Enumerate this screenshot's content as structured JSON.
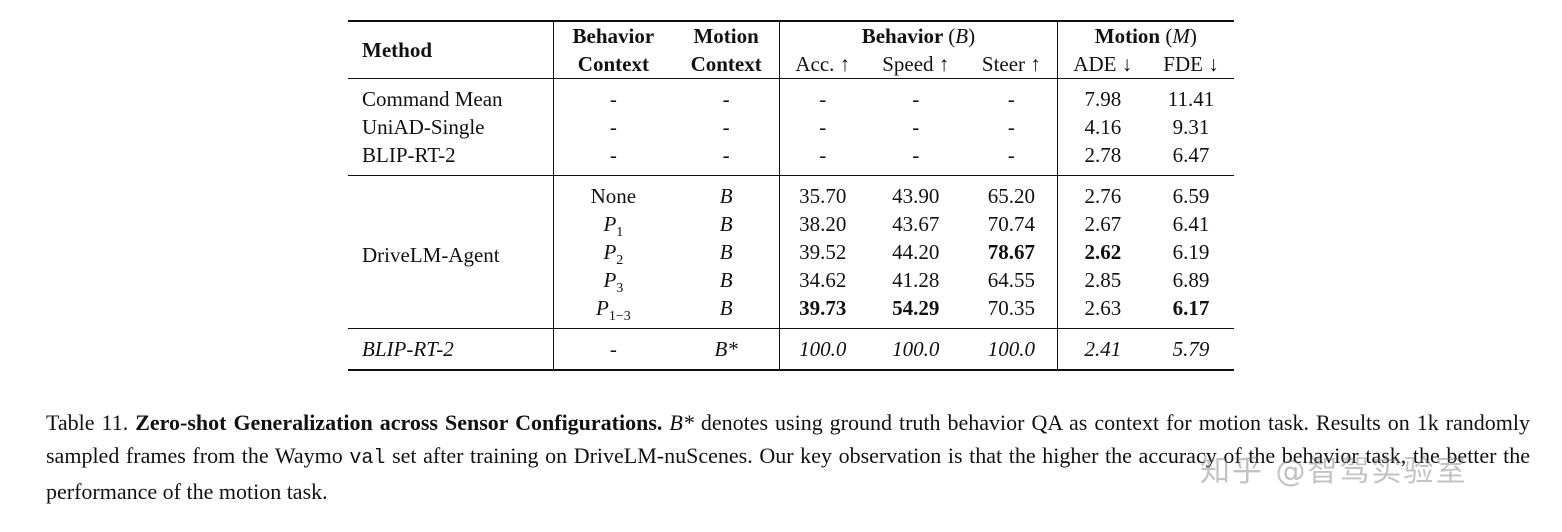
{
  "table": {
    "headers": {
      "method": "Method",
      "behavior_context_1": "Behavior",
      "behavior_context_2": "Context",
      "motion_context_1": "Motion",
      "motion_context_2": "Context",
      "behavior_group": "Behavior",
      "behavior_symbol": "(B)",
      "motion_group": "Motion",
      "motion_symbol": "(M)",
      "acc": "Acc. ↑",
      "speed": "Speed ↑",
      "steer": "Steer ↑",
      "ade": "ADE ↓",
      "fde": "FDE ↓"
    },
    "baselines": [
      {
        "method": "Command Mean",
        "bctx": "-",
        "mctx": "-",
        "acc": "-",
        "speed": "-",
        "steer": "-",
        "ade": "7.98",
        "fde": "11.41"
      },
      {
        "method": "UniAD-Single",
        "bctx": "-",
        "mctx": "-",
        "acc": "-",
        "speed": "-",
        "steer": "-",
        "ade": "4.16",
        "fde": "9.31"
      },
      {
        "method": "BLIP-RT-2",
        "bctx": "-",
        "mctx": "-",
        "acc": "-",
        "speed": "-",
        "steer": "-",
        "ade": "2.78",
        "fde": "6.47"
      }
    ],
    "agent_method": "DriveLM-Agent",
    "agent_rows": [
      {
        "bctx": "None",
        "mctx": "B",
        "acc": "35.70",
        "speed": "43.90",
        "steer": "65.20",
        "ade": "2.76",
        "fde": "6.59"
      },
      {
        "bctx": "P",
        "bsub": "1",
        "mctx": "B",
        "acc": "38.20",
        "speed": "43.67",
        "steer": "70.74",
        "ade": "2.67",
        "fde": "6.41"
      },
      {
        "bctx": "P",
        "bsub": "2",
        "mctx": "B",
        "acc": "39.52",
        "speed": "44.20",
        "steer": "78.67",
        "ade": "2.62",
        "fde": "6.19"
      },
      {
        "bctx": "P",
        "bsub": "3",
        "mctx": "B",
        "acc": "34.62",
        "speed": "41.28",
        "steer": "64.55",
        "ade": "2.85",
        "fde": "6.89"
      },
      {
        "bctx": "P",
        "bsub": "1−3",
        "mctx": "B",
        "acc": "39.73",
        "speed": "54.29",
        "steer": "70.35",
        "ade": "2.63",
        "fde": "6.17"
      }
    ],
    "oracle": {
      "method": "BLIP-RT-2",
      "bctx": "-",
      "mctx": "B*",
      "acc": "100.0",
      "speed": "100.0",
      "steer": "100.0",
      "ade": "2.41",
      "fde": "5.79"
    }
  },
  "caption": {
    "label": "Table 11.",
    "title": "Zero-shot Generalization across Sensor Configurations.",
    "symbol": "B*",
    "text1": "denotes using ground truth behavior QA as context for motion task. Results on 1k randomly sampled frames from the Waymo",
    "code": "val",
    "text2": "set after training on DriveLM-nuScenes. Our key observation is that the higher the accuracy of the behavior task, the better the performance of the motion task."
  },
  "watermark": "知乎 @智驾实验室"
}
